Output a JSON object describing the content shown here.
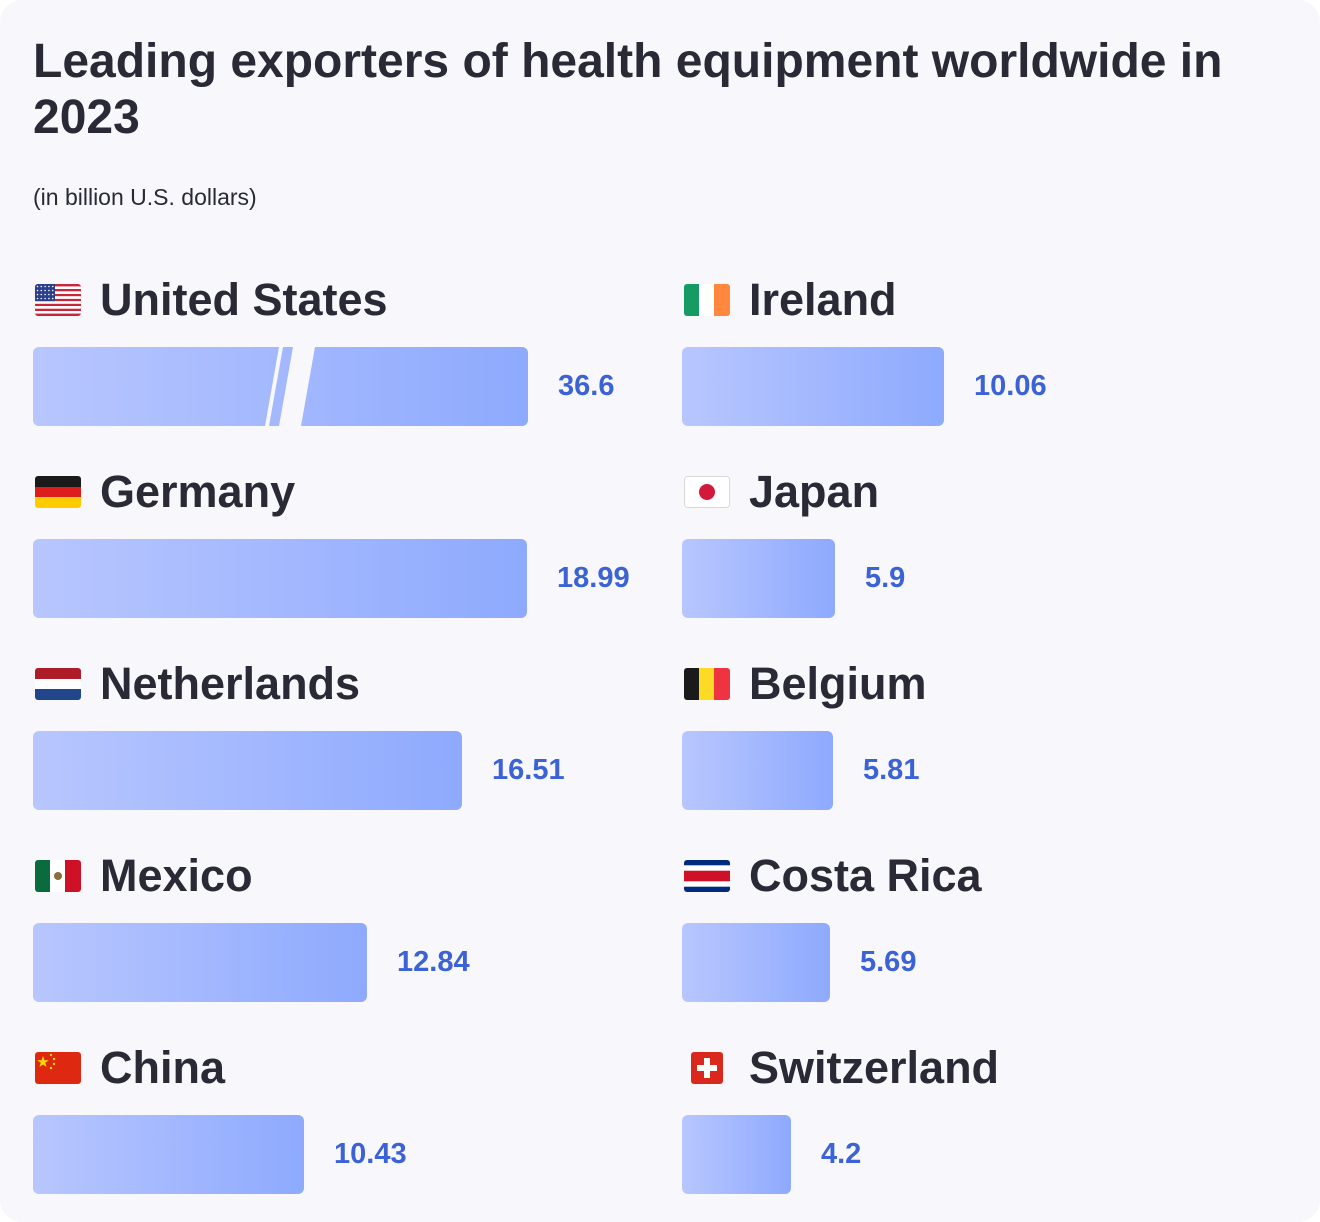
{
  "title": "Leading exporters of health equipment worldwide in 2023",
  "subtitle": "(in billion U.S. dollars)",
  "colors": {
    "bar_start": "#b8c6ff",
    "bar_end": "#8eaafd",
    "value_text": "#3b63d6",
    "text": "#2a2a36",
    "background": "#f7f7fc"
  },
  "chart_data": {
    "type": "bar",
    "orientation": "horizontal",
    "title": "Leading exporters of health equipment worldwide in 2023",
    "subtitle": "(in billion U.S. dollars)",
    "unit": "billion U.S. dollars",
    "axis_break": {
      "category": "United States",
      "note": "bar truncated with break marks"
    },
    "categories": [
      "United States",
      "Germany",
      "Netherlands",
      "Mexico",
      "China",
      "Ireland",
      "Japan",
      "Belgium",
      "Costa Rica",
      "Switzerland"
    ],
    "values": [
      36.6,
      18.99,
      16.51,
      12.84,
      10.43,
      10.06,
      5.9,
      5.81,
      5.69,
      4.2
    ],
    "value_labels": [
      "36.6",
      "18.99",
      "16.51",
      "12.84",
      "10.43",
      "10.06",
      "5.9",
      "5.81",
      "5.69",
      "4.2"
    ],
    "flags": [
      "us-flag-icon",
      "germany-flag-icon",
      "netherlands-flag-icon",
      "mexico-flag-icon",
      "china-flag-icon",
      "ireland-flag-icon",
      "japan-flag-icon",
      "belgium-flag-icon",
      "costa-rica-flag-icon",
      "switzerland-flag-icon"
    ]
  }
}
